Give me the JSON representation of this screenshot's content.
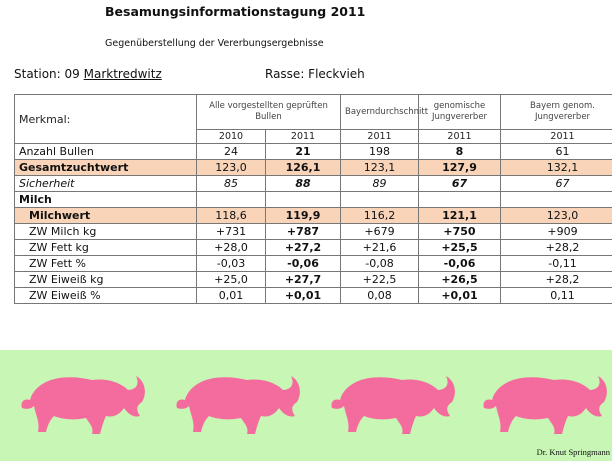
{
  "header": {
    "title": "Besamungsinformationstagung 2011",
    "subtitle": "Gegenüberstellung der Vererbungsergebnisse",
    "station": {
      "label": "Station: 09",
      "name": "Marktredwitz"
    },
    "rasse": "Rasse: Fleckvieh"
  },
  "table": {
    "merkmal": "Merkmal:",
    "groups": [
      {
        "label": "Alle vorgestellten geprüften Bullen",
        "years": [
          "2010",
          "2011"
        ]
      },
      {
        "label": "Bayerndurchschnitt",
        "years": [
          "2011"
        ]
      },
      {
        "label": "genomische Jungvererber",
        "years": [
          "2011"
        ]
      },
      {
        "label": "Bayern genom. Jungvererber",
        "years": [
          "2011"
        ]
      }
    ],
    "rows": [
      {
        "label": "Anzahl Bullen",
        "values": [
          "24",
          "21",
          "198",
          "8",
          "61"
        ]
      },
      {
        "label": "Gesamtzuchtwert",
        "values": [
          "123,0",
          "126,1",
          "123,1",
          "127,9",
          "132,1"
        ]
      },
      {
        "label": "Sicherheit",
        "values": [
          "85",
          "88",
          "89",
          "67",
          "67"
        ]
      },
      {
        "label": "Milch"
      },
      {
        "label": "Milchwert",
        "values": [
          "118,6",
          "119,9",
          "116,2",
          "121,1",
          "123,0"
        ]
      },
      {
        "label": "ZW Milch kg",
        "values": [
          "+731",
          "+787",
          "+679",
          "+750",
          "+909"
        ]
      },
      {
        "label": "ZW Fett kg",
        "values": [
          "+28,0",
          "+27,2",
          "+21,6",
          "+25,5",
          "+28,2"
        ]
      },
      {
        "label": "ZW Fett %",
        "values": [
          "-0,03",
          "-0,06",
          "-0,08",
          "-0,06",
          "-0,11"
        ]
      },
      {
        "label": "ZW Eiweiß kg",
        "values": [
          "+25,0",
          "+27,7",
          "+22,5",
          "+26,5",
          "+28,2"
        ]
      },
      {
        "label": "ZW Eiweiß %",
        "values": [
          "0,01",
          "+0,01",
          "0,08",
          "+0,01",
          "0,11"
        ]
      }
    ]
  },
  "footer": {
    "author": "Dr. Knut Springmann"
  }
}
